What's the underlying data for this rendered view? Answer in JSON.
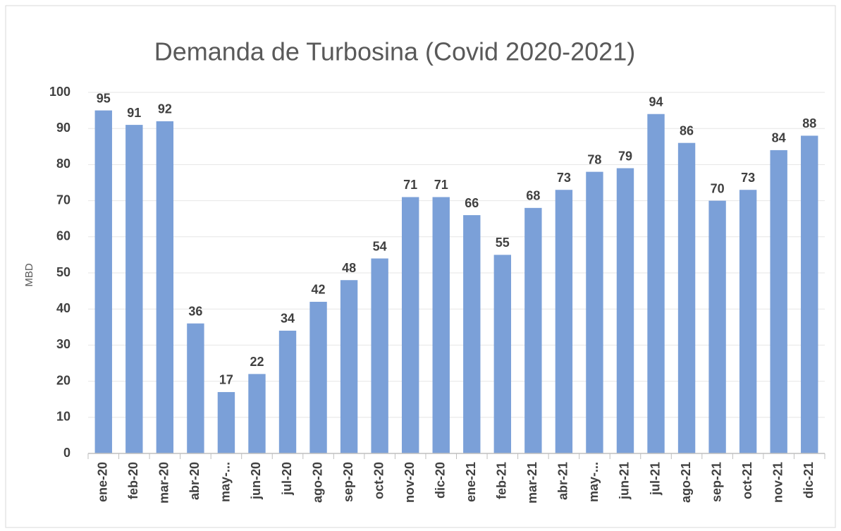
{
  "chart_data": {
    "type": "bar",
    "title": "Demanda de Turbosina (Covid 2020-2021)",
    "y_label": "MBD",
    "categories": [
      "ene-20",
      "feb-20",
      "mar-20",
      "abr-20",
      "may-...",
      "jun-20",
      "jul-20",
      "ago-20",
      "sep-20",
      "oct-20",
      "nov-20",
      "dic-20",
      "ene-21",
      "feb-21",
      "mar-21",
      "abr-21",
      "may-...",
      "jun-21",
      "jul-21",
      "ago-21",
      "sep-21",
      "oct-21",
      "nov-21",
      "dic-21"
    ],
    "values": [
      95,
      91,
      92,
      36,
      17,
      22,
      34,
      42,
      48,
      54,
      71,
      71,
      66,
      55,
      68,
      73,
      78,
      79,
      94,
      86,
      70,
      73,
      84,
      88
    ],
    "color": "#7ba0d8",
    "ylim": [
      0,
      100
    ],
    "yticks": [
      0,
      10,
      20,
      30,
      40,
      50,
      60,
      70,
      80,
      90,
      100
    ],
    "grid": true
  }
}
